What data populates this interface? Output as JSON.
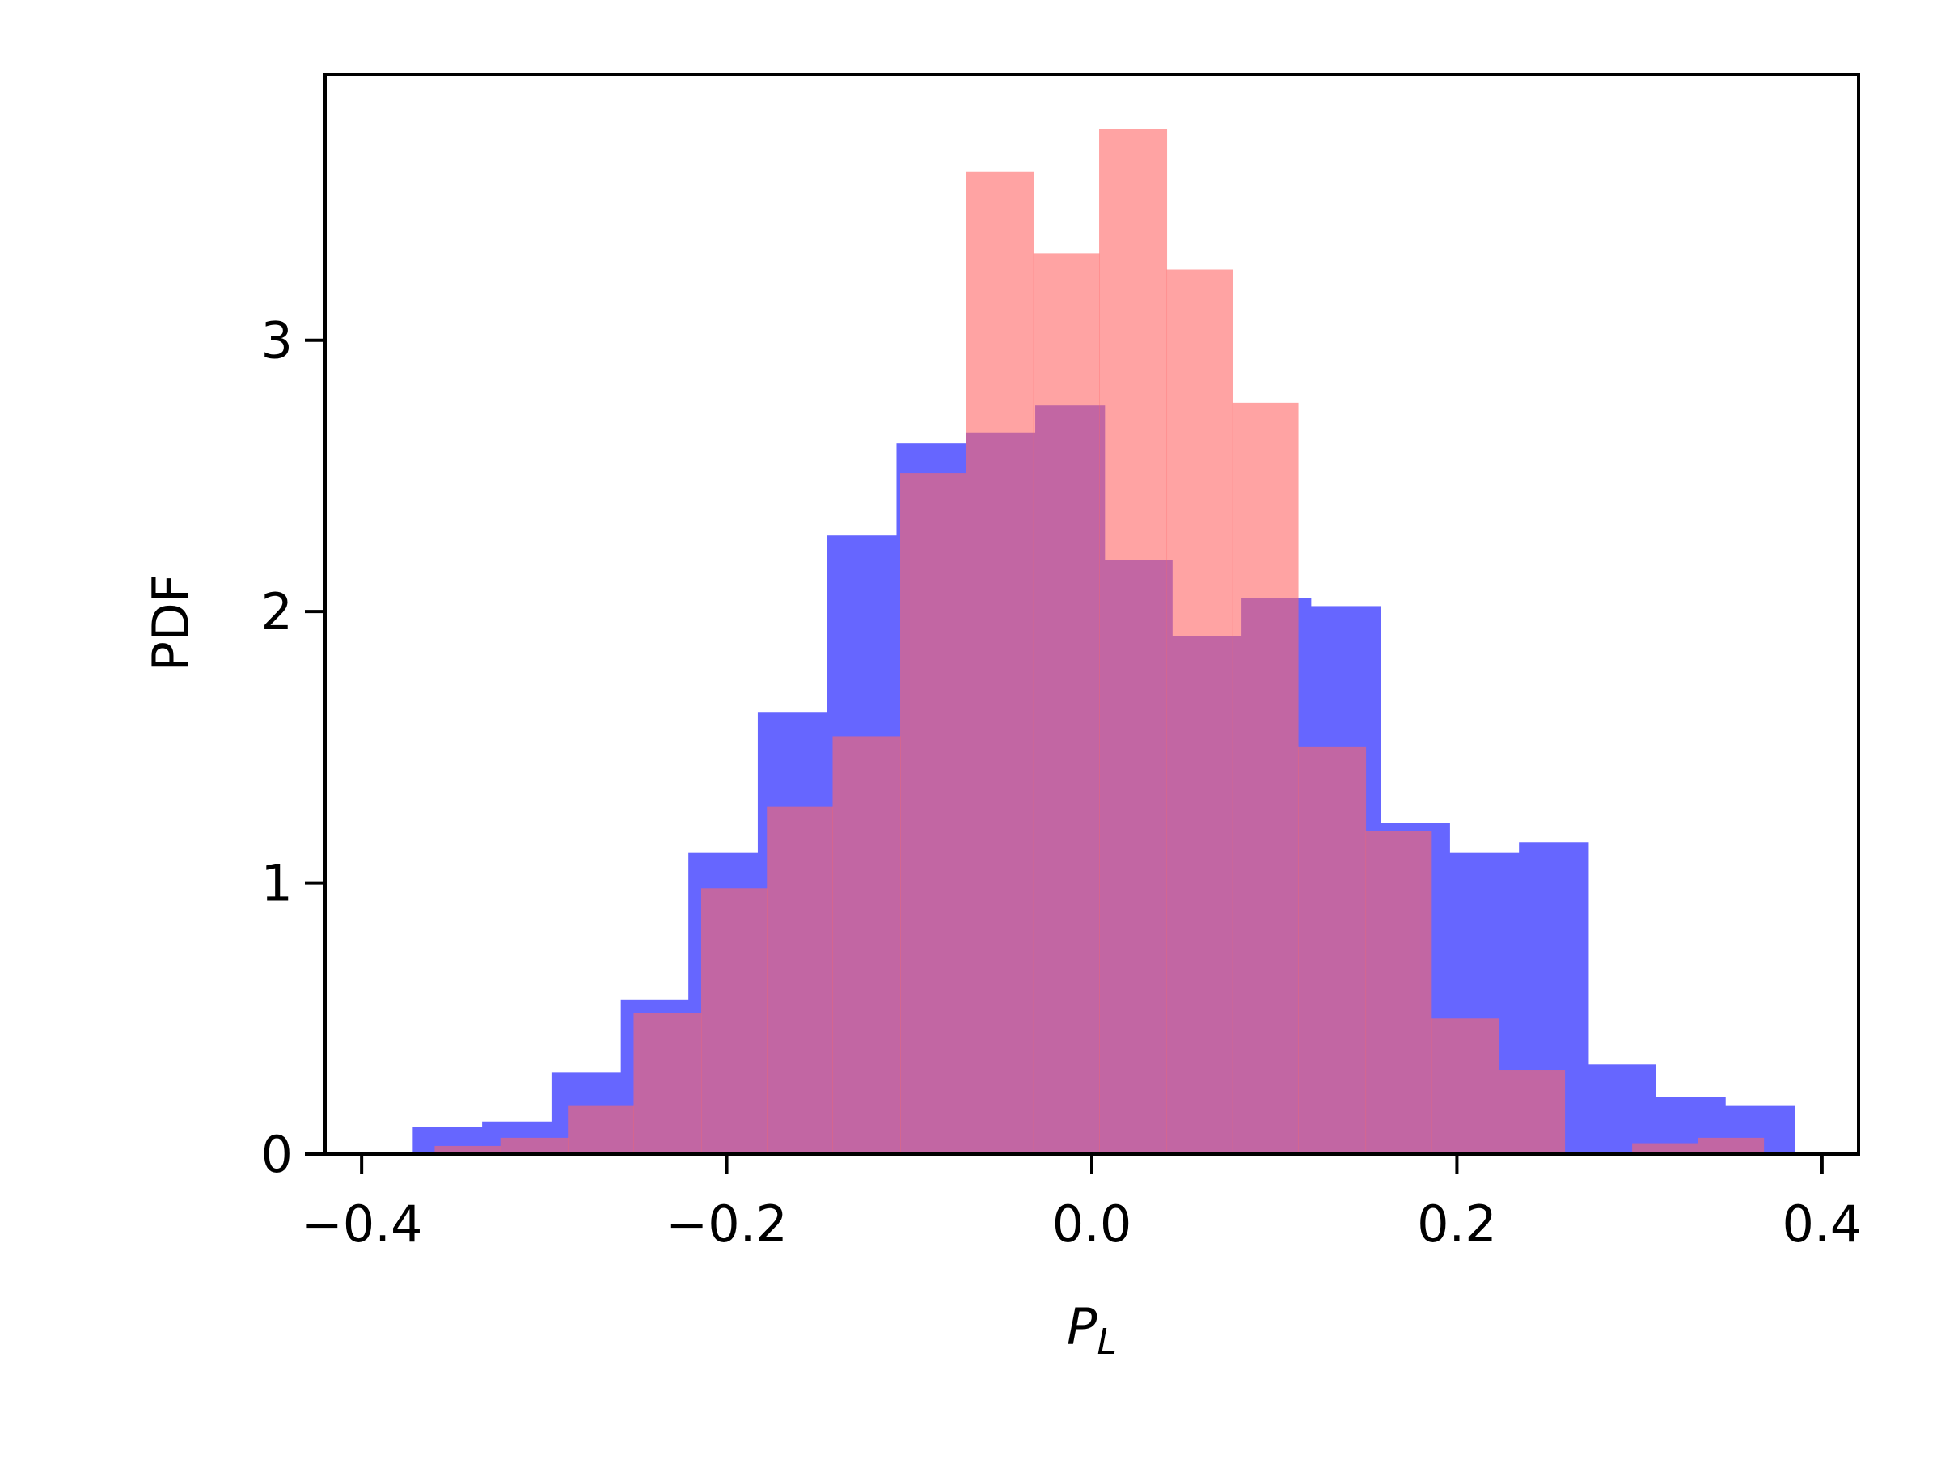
{
  "chart_data": {
    "type": "histogram",
    "xlabel": "P",
    "xlabel_subscript": "L",
    "ylabel": "PDF",
    "xlim": [
      -0.42,
      0.42
    ],
    "ylim": [
      0,
      3.98
    ],
    "x_ticks": [
      -0.4,
      -0.2,
      0.0,
      0.2,
      0.4
    ],
    "x_tick_labels": [
      "−0.4",
      "−0.2",
      "0.0",
      "0.2",
      "0.4"
    ],
    "y_ticks": [
      0,
      1,
      2,
      3
    ],
    "y_tick_labels": [
      "0",
      "1",
      "2",
      "3"
    ],
    "grid": false,
    "series": [
      {
        "color": "#6666ff",
        "bins": [
          {
            "x0": -0.372,
            "x1": -0.334,
            "value": 0.1
          },
          {
            "x0": -0.334,
            "x1": -0.296,
            "value": 0.12
          },
          {
            "x0": -0.296,
            "x1": -0.258,
            "value": 0.3
          },
          {
            "x0": -0.258,
            "x1": -0.221,
            "value": 0.57
          },
          {
            "x0": -0.221,
            "x1": -0.183,
            "value": 1.11
          },
          {
            "x0": -0.183,
            "x1": -0.145,
            "value": 1.63
          },
          {
            "x0": -0.145,
            "x1": -0.107,
            "value": 2.28
          },
          {
            "x0": -0.107,
            "x1": -0.069,
            "value": 2.62
          },
          {
            "x0": -0.069,
            "x1": -0.031,
            "value": 2.66
          },
          {
            "x0": -0.031,
            "x1": 0.007,
            "value": 2.76
          },
          {
            "x0": 0.007,
            "x1": 0.044,
            "value": 2.19
          },
          {
            "x0": 0.044,
            "x1": 0.082,
            "value": 1.91
          },
          {
            "x0": 0.082,
            "x1": 0.12,
            "value": 2.05
          },
          {
            "x0": 0.12,
            "x1": 0.158,
            "value": 2.02
          },
          {
            "x0": 0.158,
            "x1": 0.196,
            "value": 1.22
          },
          {
            "x0": 0.196,
            "x1": 0.234,
            "value": 1.11
          },
          {
            "x0": 0.234,
            "x1": 0.272,
            "value": 1.15
          },
          {
            "x0": 0.272,
            "x1": 0.309,
            "value": 0.33
          },
          {
            "x0": 0.309,
            "x1": 0.347,
            "value": 0.21
          },
          {
            "x0": 0.347,
            "x1": 0.385,
            "value": 0.18
          }
        ]
      },
      {
        "color": "#ff6666",
        "bins": [
          {
            "x0": -0.36,
            "x1": -0.324,
            "value": 0.03
          },
          {
            "x0": -0.324,
            "x1": -0.287,
            "value": 0.06
          },
          {
            "x0": -0.287,
            "x1": -0.251,
            "value": 0.18
          },
          {
            "x0": -0.251,
            "x1": -0.214,
            "value": 0.52
          },
          {
            "x0": -0.214,
            "x1": -0.178,
            "value": 0.98
          },
          {
            "x0": -0.178,
            "x1": -0.142,
            "value": 1.28
          },
          {
            "x0": -0.142,
            "x1": -0.105,
            "value": 1.54
          },
          {
            "x0": -0.105,
            "x1": -0.069,
            "value": 2.51
          },
          {
            "x0": -0.069,
            "x1": -0.032,
            "value": 3.62
          },
          {
            "x0": -0.032,
            "x1": 0.004,
            "value": 3.32
          },
          {
            "x0": 0.004,
            "x1": 0.041,
            "value": 3.78
          },
          {
            "x0": 0.041,
            "x1": 0.077,
            "value": 3.26
          },
          {
            "x0": 0.077,
            "x1": 0.113,
            "value": 2.77
          },
          {
            "x0": 0.113,
            "x1": 0.15,
            "value": 1.5
          },
          {
            "x0": 0.15,
            "x1": 0.186,
            "value": 1.19
          },
          {
            "x0": 0.186,
            "x1": 0.223,
            "value": 0.5
          },
          {
            "x0": 0.223,
            "x1": 0.259,
            "value": 0.31
          },
          {
            "x0": 0.259,
            "x1": 0.296,
            "value": 0.0
          },
          {
            "x0": 0.296,
            "x1": 0.332,
            "value": 0.04
          },
          {
            "x0": 0.332,
            "x1": 0.368,
            "value": 0.06
          }
        ]
      }
    ]
  }
}
